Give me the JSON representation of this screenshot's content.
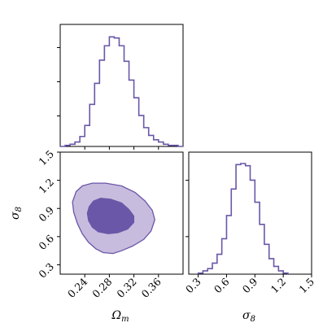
{
  "chart_data": [
    {
      "type": "histogram",
      "panel": "omega_m-marginal",
      "xlim": [
        0.2,
        0.4
      ],
      "x_tick_values": [
        0.24,
        0.28,
        0.32,
        0.36
      ],
      "bin_edges": [
        0.2,
        0.208,
        0.216,
        0.224,
        0.232,
        0.24,
        0.248,
        0.256,
        0.264,
        0.272,
        0.28,
        0.288,
        0.296,
        0.304,
        0.312,
        0.32,
        0.328,
        0.336,
        0.344,
        0.352,
        0.36,
        0.368,
        0.376,
        0.384,
        0.392,
        0.4
      ],
      "relative_counts": [
        0.0,
        0.01,
        0.02,
        0.04,
        0.09,
        0.19,
        0.38,
        0.57,
        0.78,
        0.91,
        0.99,
        0.98,
        0.91,
        0.77,
        0.6,
        0.44,
        0.28,
        0.17,
        0.1,
        0.06,
        0.04,
        0.02,
        0.01,
        0.01,
        0.0
      ],
      "color": "#6A57A8"
    },
    {
      "type": "contour",
      "panel": "omega_m-sigma_8-joint",
      "x_variable": "omega_m",
      "y_variable": "sigma_8",
      "xlim": [
        0.2,
        0.4
      ],
      "ylim": [
        0.2,
        1.5
      ],
      "xlabel": "Ω_m",
      "ylabel": "σ_8",
      "x_tick_labels": [
        "0.24",
        "0.28",
        "0.32",
        "0.36"
      ],
      "x_tick_values": [
        0.24,
        0.28,
        0.32,
        0.36
      ],
      "y_tick_labels": [
        "0.3",
        "0.6",
        "0.9",
        "1.2",
        "1.5"
      ],
      "y_tick_values": [
        0.3,
        0.6,
        0.9,
        1.2,
        1.5
      ],
      "levels": [
        {
          "level": "outer",
          "color": "#C7BCDD",
          "points": [
            [
              0.226,
              1.08
            ],
            [
              0.236,
              1.14
            ],
            [
              0.252,
              1.17
            ],
            [
              0.274,
              1.17
            ],
            [
              0.3,
              1.14
            ],
            [
              0.322,
              1.07
            ],
            [
              0.338,
              0.98
            ],
            [
              0.35,
              0.88
            ],
            [
              0.354,
              0.78
            ],
            [
              0.348,
              0.66
            ],
            [
              0.336,
              0.57
            ],
            [
              0.318,
              0.5
            ],
            [
              0.3,
              0.45
            ],
            [
              0.286,
              0.42
            ],
            [
              0.27,
              0.43
            ],
            [
              0.258,
              0.47
            ],
            [
              0.246,
              0.54
            ],
            [
              0.236,
              0.63
            ],
            [
              0.228,
              0.74
            ],
            [
              0.222,
              0.86
            ],
            [
              0.22,
              0.97
            ]
          ]
        },
        {
          "level": "inner",
          "color": "#6A57A8",
          "points": [
            [
              0.247,
              0.92
            ],
            [
              0.254,
              0.98
            ],
            [
              0.266,
              1.01
            ],
            [
              0.282,
              1.0
            ],
            [
              0.3,
              0.96
            ],
            [
              0.312,
              0.89
            ],
            [
              0.32,
              0.82
            ],
            [
              0.32,
              0.75
            ],
            [
              0.31,
              0.68
            ],
            [
              0.294,
              0.64
            ],
            [
              0.278,
              0.63
            ],
            [
              0.262,
              0.65
            ],
            [
              0.252,
              0.7
            ],
            [
              0.246,
              0.77
            ],
            [
              0.244,
              0.85
            ]
          ]
        }
      ]
    },
    {
      "type": "histogram",
      "panel": "sigma_8-marginal",
      "xlim": [
        0.2,
        1.5
      ],
      "xlabel": "σ_8",
      "x_tick_labels": [
        "0.3",
        "0.6",
        "0.9",
        "1.2",
        "1.5"
      ],
      "x_tick_values": [
        0.3,
        0.6,
        0.9,
        1.2,
        1.5
      ],
      "bin_edges": [
        0.3,
        0.35,
        0.4,
        0.45,
        0.5,
        0.55,
        0.6,
        0.65,
        0.7,
        0.75,
        0.8,
        0.85,
        0.9,
        0.95,
        1.0,
        1.05,
        1.1,
        1.15,
        1.2,
        1.25
      ],
      "relative_counts": [
        0.01,
        0.03,
        0.05,
        0.1,
        0.18,
        0.32,
        0.53,
        0.77,
        0.99,
        1.0,
        0.98,
        0.85,
        0.65,
        0.45,
        0.27,
        0.14,
        0.07,
        0.03,
        0.01
      ],
      "color": "#6A57A8"
    }
  ],
  "labels": {
    "ax_diag1_y_ticks": [
      "",
      "",
      ""
    ],
    "omega_label": "Ω",
    "omega_sub": "m",
    "sigma_label": "σ",
    "sigma_sub": "8"
  }
}
